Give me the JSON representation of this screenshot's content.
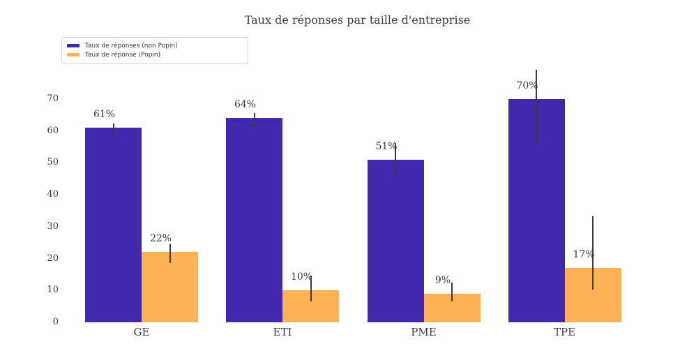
{
  "chart_data": {
    "type": "bar",
    "title": "Taux de réponses par taille d'entreprise",
    "categories": [
      "GE",
      "ETI",
      "PME",
      "TPE"
    ],
    "series": [
      {
        "name": "Taux de réponses (non Popin)",
        "color": "#4228AC",
        "values": [
          61,
          64,
          51,
          70
        ],
        "labels": [
          "61%",
          "64%",
          "51%",
          "70%"
        ],
        "error_ranges": [
          [
            57.8,
            62.4
          ],
          [
            61.3,
            65.7
          ],
          [
            45.7,
            56.2
          ],
          [
            55.9,
            79.2
          ]
        ]
      },
      {
        "name": "Taux de réponse (Popin)",
        "color": "#FDB255",
        "values": [
          22,
          10,
          9,
          17
        ],
        "labels": [
          "22%",
          "10%",
          "9%",
          "17%"
        ],
        "error_ranges": [
          [
            18.5,
            24.4
          ],
          [
            6.6,
            14.6
          ],
          [
            6.6,
            12.4
          ],
          [
            10.3,
            33.3
          ]
        ]
      }
    ],
    "yticks": [
      0,
      10,
      20,
      30,
      40,
      50,
      60,
      70
    ],
    "ylim": [
      0,
      77
    ],
    "ylabel": "",
    "xlabel": "",
    "grid": false,
    "legend_position": "upper left",
    "error_bar_color": "#3a3a3a",
    "text_color": "#3a3a3a",
    "background_color": "#ffffff"
  }
}
